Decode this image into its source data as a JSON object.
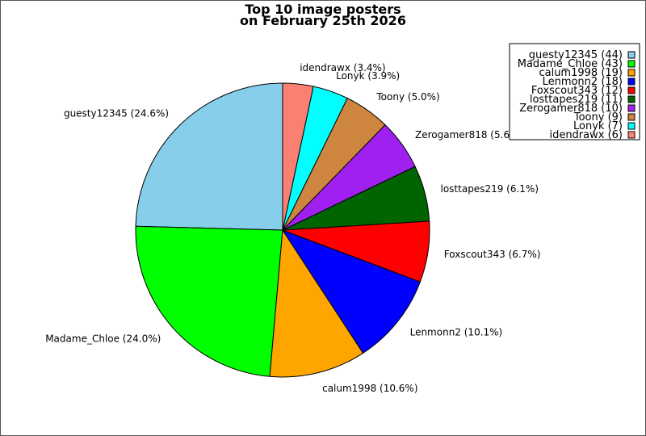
{
  "chart_data": {
    "type": "pie",
    "title": [
      "Top 10 image posters",
      "on February 25th 2026"
    ],
    "start_angle_deg": 90,
    "direction": "counterclockwise",
    "legend_position": "top-right",
    "slices": [
      {
        "name": "guesty12345",
        "value": 44,
        "label": "guesty12345 (24.6%)",
        "legend": "guesty12345 (44)",
        "color": "#87CEEB"
      },
      {
        "name": "Madame_Chloe",
        "value": 43,
        "label": "Madame_Chloe (24.0%)",
        "legend": "Madame_Chloe (43)",
        "color": "#00FF00"
      },
      {
        "name": "calum1998",
        "value": 19,
        "label": "calum1998 (10.6%)",
        "legend": "calum1998 (19)",
        "color": "#FFA500"
      },
      {
        "name": "Lenmonn2",
        "value": 18,
        "label": "Lenmonn2 (10.1%)",
        "legend": "Lenmonn2 (18)",
        "color": "#0000FF"
      },
      {
        "name": "Foxscout343",
        "value": 12,
        "label": "Foxscout343 (6.7%)",
        "legend": "Foxscout343 (12)",
        "color": "#FF0000"
      },
      {
        "name": "losttapes219",
        "value": 11,
        "label": "losttapes219 (6.1%)",
        "legend": "losttapes219 (11)",
        "color": "#006400"
      },
      {
        "name": "Zerogamer818",
        "value": 10,
        "label": "Zerogamer818 (5.6%)",
        "legend": "Zerogamer818 (10)",
        "color": "#A020F0"
      },
      {
        "name": "Toony",
        "value": 9,
        "label": "Toony (5.0%)",
        "legend": "Toony (9)",
        "color": "#CD853F"
      },
      {
        "name": "Lonyk",
        "value": 7,
        "label": "Lonyk (3.9%)",
        "legend": "Lonyk (7)",
        "color": "#00FFFF"
      },
      {
        "name": "idendrawx",
        "value": 6,
        "label": "idendrawx (3.4%)",
        "legend": "idendrawx (6)",
        "color": "#FA8072"
      }
    ]
  }
}
